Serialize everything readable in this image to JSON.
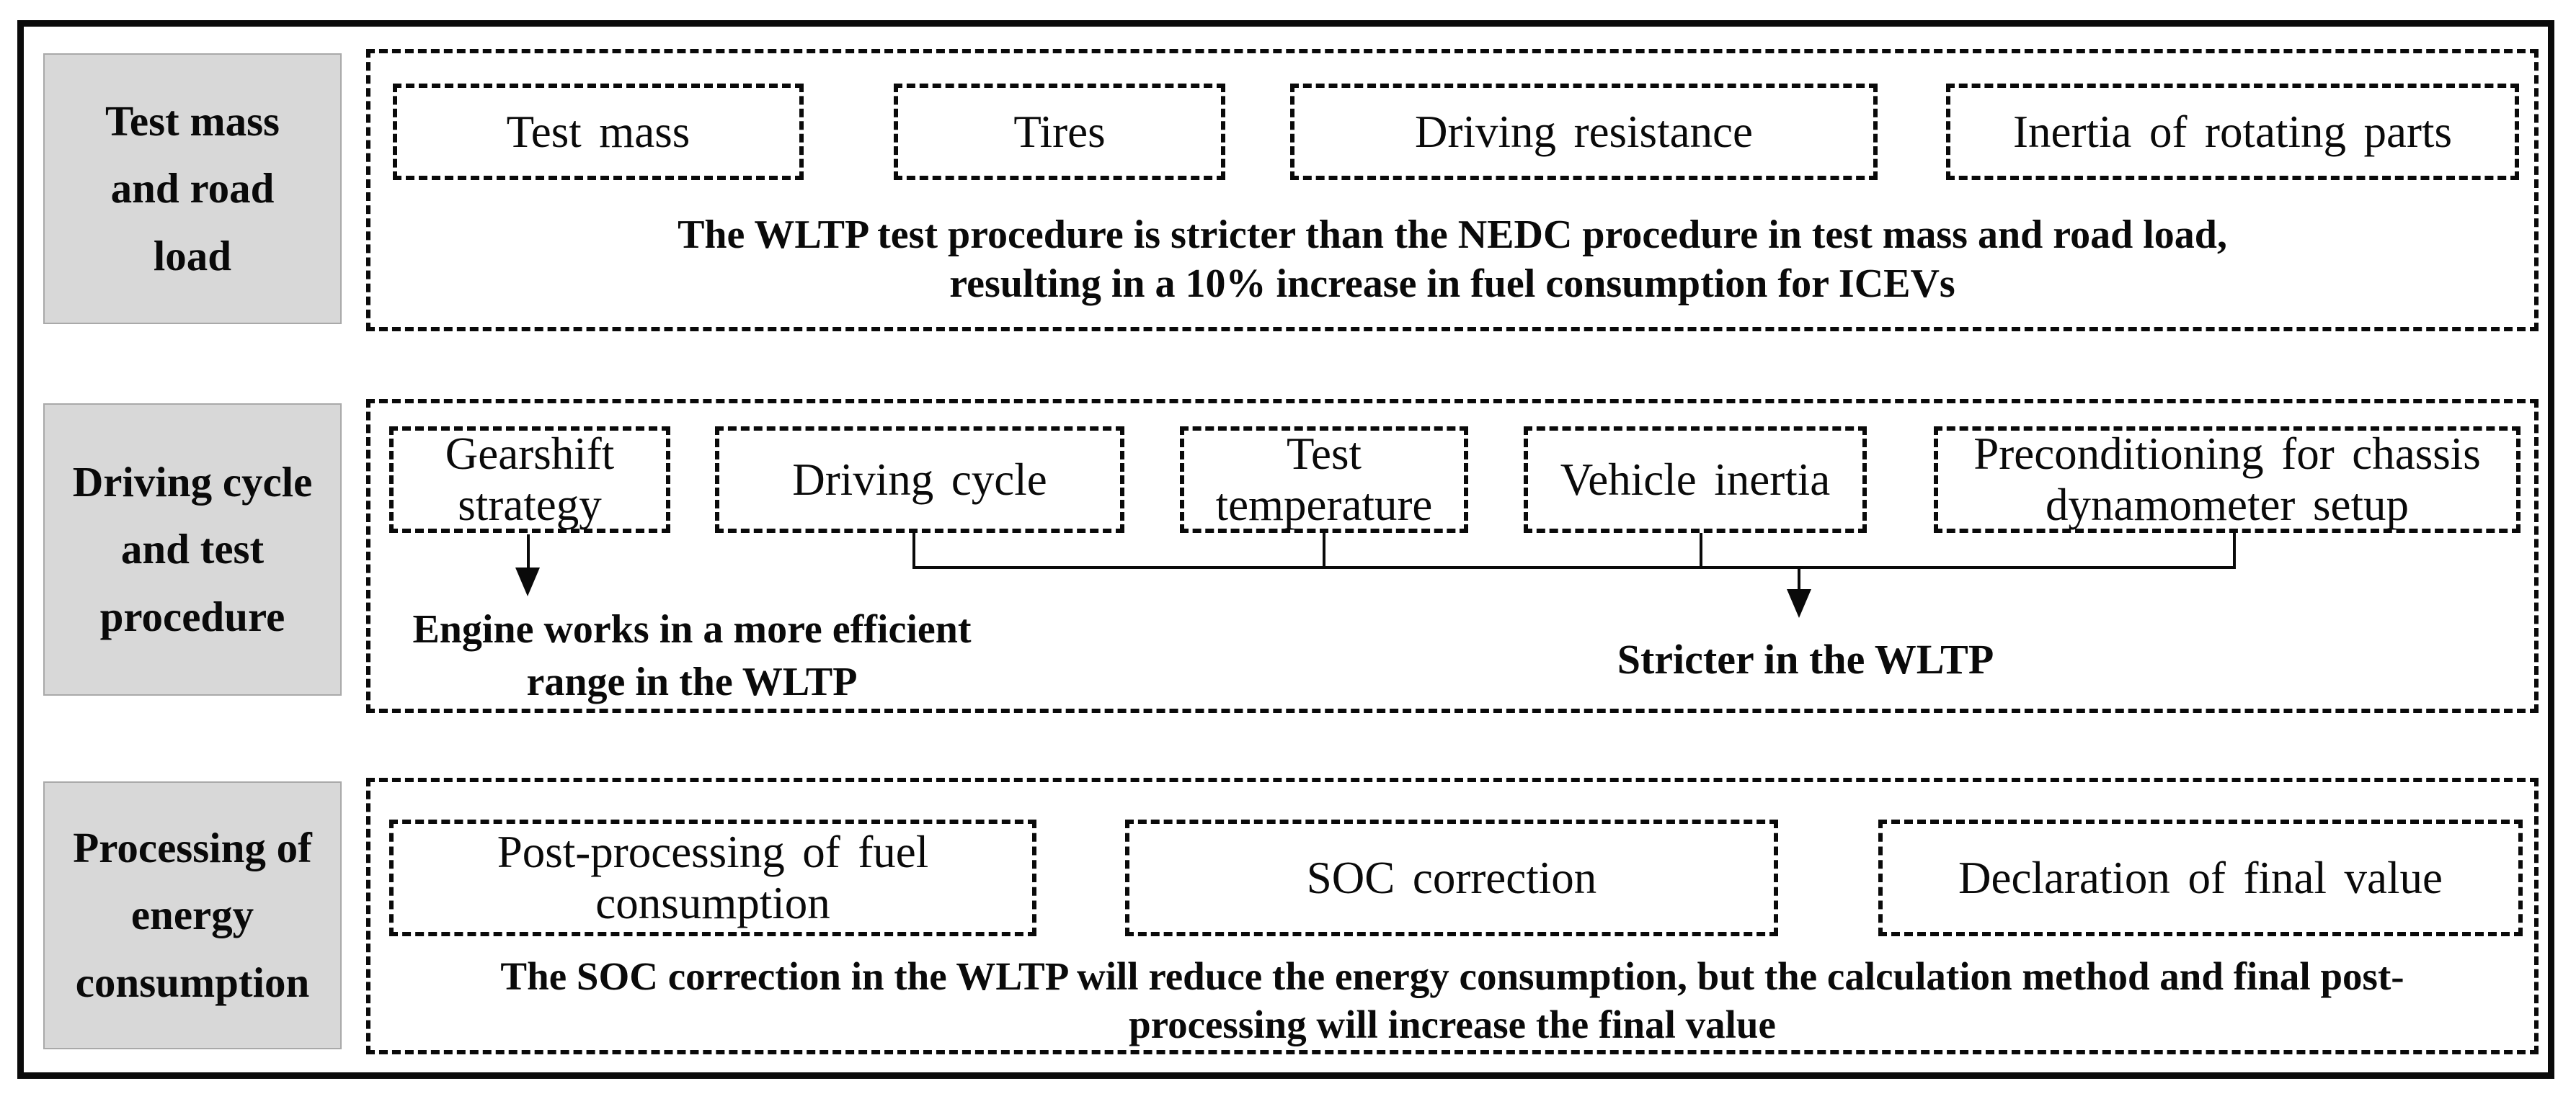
{
  "diagram": {
    "rows": [
      {
        "label": "Test mass\nand road\nload",
        "boxes": [
          "Test mass",
          "Tires",
          "Driving resistance",
          "Inertia of rotating parts"
        ],
        "caption": "The WLTP test procedure is stricter than the NEDC procedure in test mass and road load,\nresulting in a 10% increase in fuel consumption for ICEVs"
      },
      {
        "label": "Driving cycle\nand test\nprocedure",
        "boxes": [
          "Gearshift\nstrategy",
          "Driving cycle",
          "Test\ntemperature",
          "Vehicle inertia",
          "Preconditioning for chassis\ndynamometer setup"
        ],
        "arrow_note": "Engine works in a more efficient\nrange in the WLTP",
        "bracket_note": "Stricter in the WLTP"
      },
      {
        "label": "Processing of\nenergy\nconsumption",
        "boxes": [
          "Post-processing of fuel\nconsumption",
          "SOC correction",
          "Declaration of final value"
        ],
        "caption": "The SOC correction in the WLTP will reduce the energy consumption, but the calculation method and final post-\nprocessing will increase the final value"
      }
    ],
    "colors": {
      "background": "#ffffff",
      "label_bg": "#d8d8d8",
      "line": "#0a0a0a"
    }
  }
}
